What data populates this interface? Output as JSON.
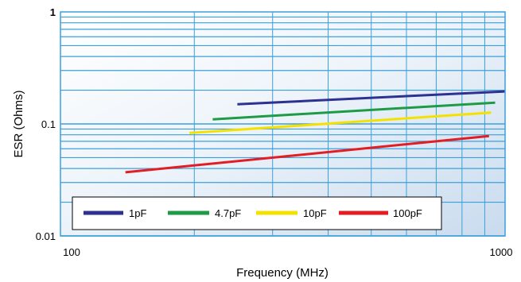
{
  "chart_data": {
    "type": "line",
    "xlabel": "Frequency (MHz)",
    "ylabel": "ESR (Ohms)",
    "x_scale": "log",
    "y_scale": "log",
    "xlim": [
      100,
      1000
    ],
    "ylim": [
      0.01,
      1
    ],
    "x_ticks": [
      "100",
      "1000"
    ],
    "y_ticks": [
      "1",
      "0.1",
      "0.01"
    ],
    "grid": true,
    "legend_position": "bottom-left",
    "series": [
      {
        "name": "1pF",
        "color": "#2e3192",
        "x": [
          250,
          1000
        ],
        "y": [
          0.15,
          0.195
        ]
      },
      {
        "name": "4.7pF",
        "color": "#1e9b45",
        "x": [
          220,
          950
        ],
        "y": [
          0.11,
          0.155
        ]
      },
      {
        "name": "10pF",
        "color": "#f5e100",
        "x": [
          195,
          930
        ],
        "y": [
          0.083,
          0.126
        ]
      },
      {
        "name": "100pF",
        "color": "#e21d24",
        "x": [
          140,
          920
        ],
        "y": [
          0.037,
          0.078
        ]
      }
    ]
  }
}
